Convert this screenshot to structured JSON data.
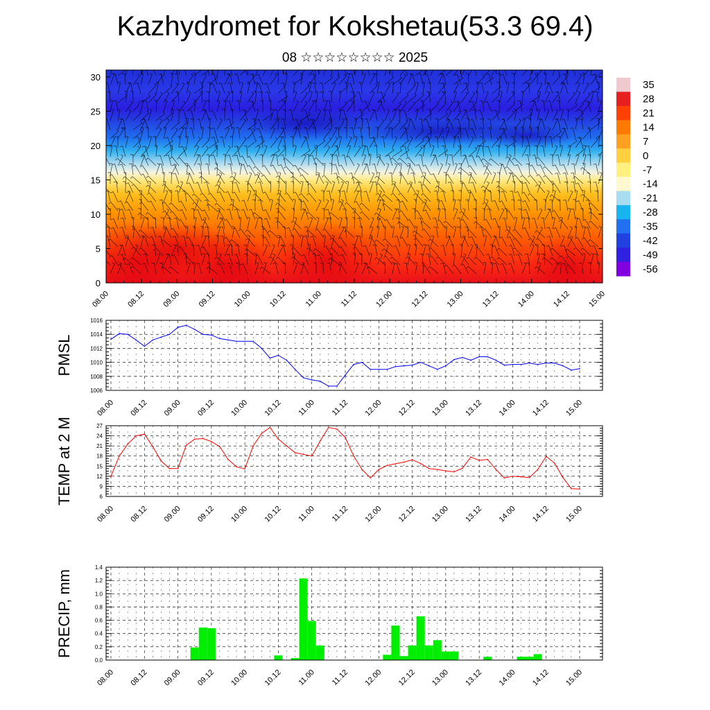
{
  "title": "Kazhydromet for Kokshetau(53.3 69.4)",
  "subtitle": "08 ☆☆☆☆☆☆☆☆ 2025",
  "time_ticks": [
    "08.00",
    "08.12",
    "09.00",
    "09.12",
    "10.00",
    "10.12",
    "11.00",
    "11.12",
    "12.00",
    "12.12",
    "13.00",
    "13.12",
    "14.00",
    "14.12",
    "15.00"
  ],
  "chart_data": [
    {
      "type": "heatmap",
      "title": "",
      "ylabel": "",
      "ylim": [
        0,
        31
      ],
      "y_ticks": [
        "0",
        "5",
        "10",
        "15",
        "20",
        "25",
        "30"
      ],
      "x_ticks": [
        "08.00",
        "08.12",
        "09.00",
        "09.12",
        "10.00",
        "10.12",
        "11.00",
        "11.12",
        "12.00",
        "12.12",
        "13.00",
        "13.12",
        "14.00",
        "14.12",
        "15.00"
      ],
      "colorbar_labels": [
        "35",
        "28",
        "21",
        "14",
        "7",
        "0",
        "-7",
        "-14",
        "-21",
        "-28",
        "-35",
        "-42",
        "-49",
        "-56"
      ],
      "colorbar_colors": [
        "#f0c8d0",
        "#e62020",
        "#ff4000",
        "#ff7a00",
        "#ffa020",
        "#ffd040",
        "#fff080",
        "#fff8d0",
        "#a8dcf0",
        "#18b4f0",
        "#2070f0",
        "#2040e0",
        "#3020e0",
        "#8000e0"
      ],
      "temperature_profile_c": [
        {
          "height": 0,
          "value": 24
        },
        {
          "height": 5,
          "value": 17
        },
        {
          "height": 10,
          "value": 8
        },
        {
          "height": 15,
          "value": -2
        },
        {
          "height": 18,
          "value": -20
        },
        {
          "height": 21,
          "value": -38
        },
        {
          "height": 25,
          "value": -55
        },
        {
          "height": 31,
          "value": -50
        }
      ]
    },
    {
      "type": "line",
      "ylabel": "PMSL",
      "ylim": [
        1006,
        1016
      ],
      "y_ticks": [
        "1006",
        "1008",
        "1010",
        "1012",
        "1014",
        "1016"
      ],
      "x_ticks": [
        "08.00",
        "08.12",
        "09.00",
        "09.12",
        "10.00",
        "10.12",
        "11.00",
        "11.12",
        "12.00",
        "12.12",
        "13.00",
        "13.12",
        "14.00",
        "14.12",
        "15.00"
      ],
      "color": "#0000ff",
      "x": [
        0,
        3,
        6,
        9,
        12,
        15,
        18,
        21,
        24,
        27,
        30,
        33,
        36,
        39,
        42,
        45,
        48,
        51,
        54,
        57,
        60,
        63,
        66,
        69,
        72,
        75,
        78,
        81,
        84,
        87,
        90,
        93,
        96,
        99,
        102,
        105,
        108,
        111,
        114,
        117,
        120,
        123,
        126,
        129,
        132,
        135,
        138,
        141,
        144,
        147,
        150,
        153,
        156,
        159,
        162,
        165,
        168
      ],
      "values": [
        1013.3,
        1014.1,
        1014.0,
        1013.2,
        1012.3,
        1013.2,
        1013.6,
        1014.0,
        1015.0,
        1015.3,
        1014.7,
        1014.0,
        1013.9,
        1013.4,
        1013.2,
        1013.0,
        1013.0,
        1013.0,
        1012.0,
        1010.6,
        1011.0,
        1010.3,
        1009.0,
        1007.8,
        1007.5,
        1007.3,
        1006.6,
        1006.6,
        1008.2,
        1009.7,
        1010.0,
        1009.0,
        1009.0,
        1009.0,
        1009.4,
        1009.5,
        1009.6,
        1010.0,
        1009.5,
        1009.0,
        1009.5,
        1010.4,
        1010.7,
        1010.3,
        1010.8,
        1010.8,
        1010.3,
        1009.6,
        1009.7,
        1009.7,
        1009.9,
        1009.7,
        1009.9,
        1009.9,
        1009.5,
        1008.9,
        1009.1
      ]
    },
    {
      "type": "line",
      "ylabel": "TEMP at 2 M",
      "ylim": [
        6,
        27
      ],
      "y_ticks": [
        "6",
        "9",
        "12",
        "15",
        "18",
        "21",
        "24",
        "27"
      ],
      "x_ticks": [
        "08.00",
        "08.12",
        "09.00",
        "09.12",
        "10.00",
        "10.12",
        "11.00",
        "11.12",
        "12.00",
        "12.12",
        "13.00",
        "13.12",
        "14.00",
        "14.12",
        "15.00"
      ],
      "color": "#ff0000",
      "x": [
        0,
        3,
        6,
        9,
        12,
        15,
        18,
        21,
        24,
        27,
        30,
        33,
        36,
        39,
        42,
        45,
        48,
        51,
        54,
        57,
        60,
        63,
        66,
        69,
        72,
        75,
        78,
        81,
        84,
        87,
        90,
        93,
        96,
        99,
        102,
        105,
        108,
        111,
        114,
        117,
        120,
        123,
        126,
        129,
        132,
        135,
        138,
        141,
        144,
        147,
        150,
        153,
        156,
        159,
        162,
        165,
        168
      ],
      "values": [
        12.0,
        18.0,
        21.5,
        24.0,
        24.5,
        20.8,
        16.5,
        14.3,
        14.3,
        21.2,
        23.0,
        23.2,
        22.3,
        20.8,
        17.0,
        14.8,
        14.2,
        21.0,
        24.7,
        26.5,
        23.0,
        21.0,
        19.0,
        18.5,
        18.0,
        22.5,
        26.5,
        26.0,
        23.5,
        18.0,
        14.0,
        11.5,
        14.0,
        15.2,
        15.7,
        16.2,
        16.9,
        15.8,
        14.3,
        14.0,
        13.6,
        13.3,
        14.4,
        17.7,
        16.7,
        17.0,
        14.0,
        11.5,
        12.0,
        11.8,
        11.6,
        14.0,
        17.9,
        15.9,
        11.6,
        8.3,
        8.2
      ]
    },
    {
      "type": "bar",
      "ylabel": "PRECIP, mm",
      "ylim": [
        0,
        1.4
      ],
      "y_ticks": [
        "0.0",
        "0.2",
        "0.4",
        "0.6",
        "0.8",
        "1.0",
        "1.2",
        "1.4"
      ],
      "x_ticks": [
        "08.00",
        "08.12",
        "09.00",
        "09.12",
        "10.00",
        "10.12",
        "11.00",
        "11.12",
        "12.00",
        "12.12",
        "13.00",
        "13.12",
        "14.00",
        "14.12",
        "15.00"
      ],
      "color": "#00ee00",
      "x": [
        30,
        33,
        36,
        60,
        66,
        69,
        72,
        75,
        99,
        102,
        105,
        108,
        111,
        114,
        117,
        120,
        123,
        135,
        147,
        150,
        153
      ],
      "values": [
        0.19,
        0.49,
        0.48,
        0.07,
        0.03,
        1.23,
        0.59,
        0.22,
        0.08,
        0.52,
        0.06,
        0.22,
        0.66,
        0.22,
        0.3,
        0.13,
        0.13,
        0.05,
        0.05,
        0.05,
        0.09
      ]
    }
  ]
}
